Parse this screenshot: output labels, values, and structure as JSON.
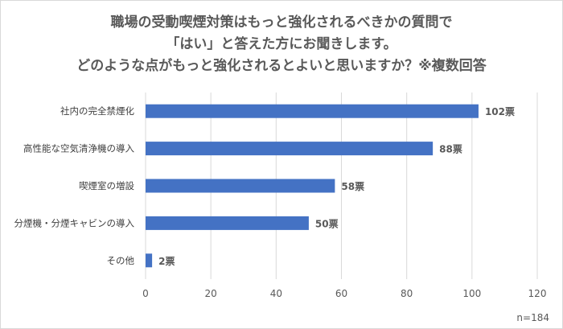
{
  "chart_data": {
    "type": "bar",
    "orientation": "horizontal",
    "title_lines": [
      "職場の受動喫煙対策はもっと強化されるべきかの質問で",
      "「はい」と答えた方にお聞きします。",
      "どのような点がもっと強化されるとよいと思いますか？※複数回答"
    ],
    "categories": [
      "社内の完全禁煙化",
      "高性能な空気清浄機の導入",
      "喫煙室の増設",
      "分煙機・分煙キャビンの導入",
      "その他"
    ],
    "values": [
      102,
      88,
      58,
      50,
      2
    ],
    "value_labels": [
      "102票",
      "88票",
      "58票",
      "50票",
      "2票"
    ],
    "xlim": [
      0,
      120
    ],
    "xticks": [
      "0",
      "20",
      "40",
      "60",
      "80",
      "100",
      "120"
    ],
    "grid": true,
    "bar_color": "#4472c4",
    "note": "n=184"
  }
}
